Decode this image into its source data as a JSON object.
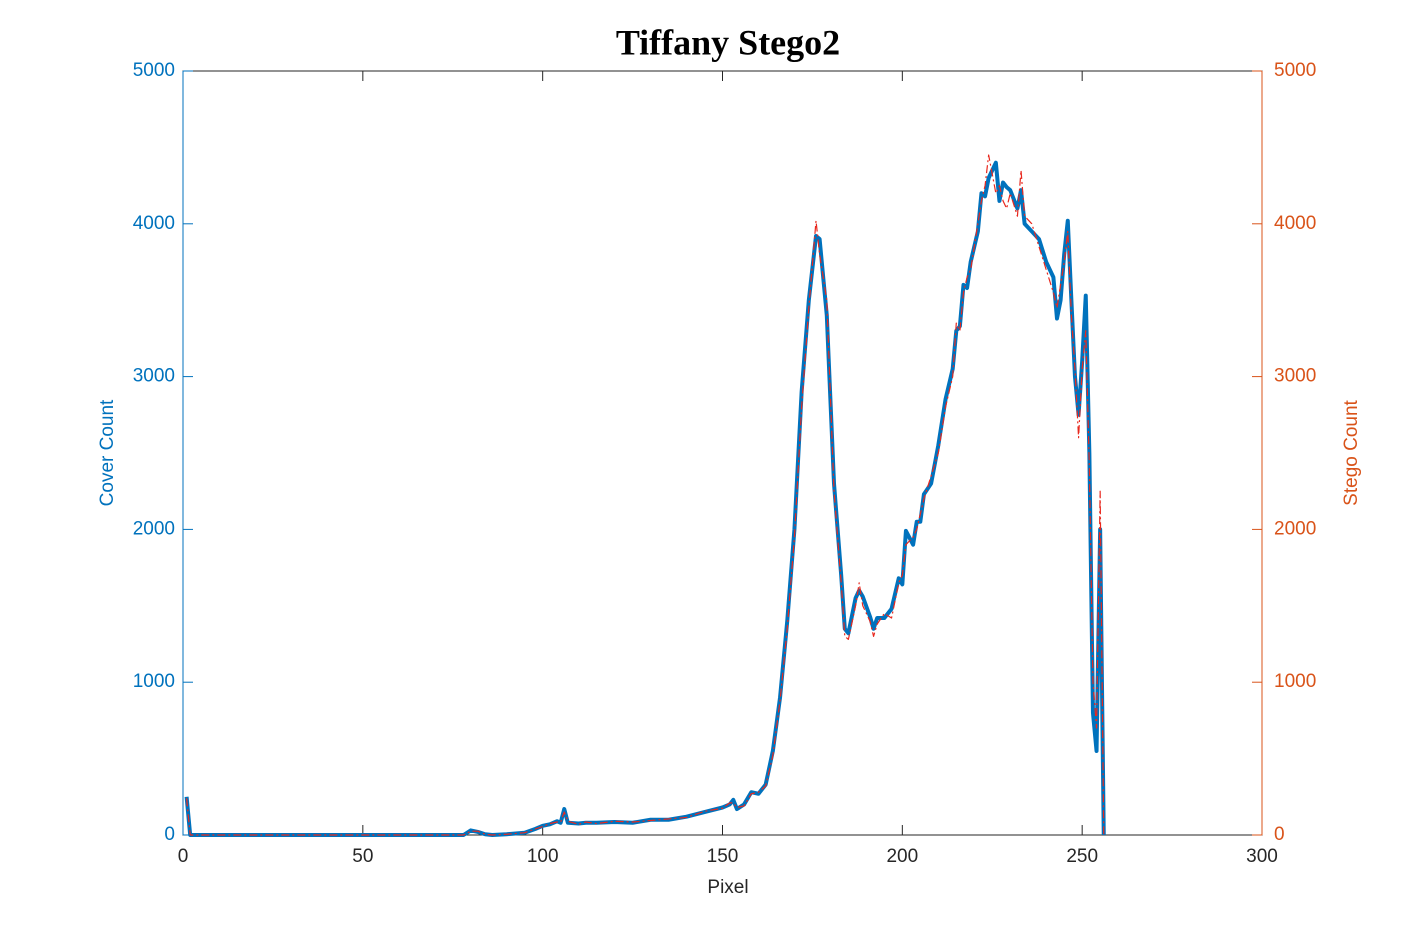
{
  "chart_data": {
    "type": "line",
    "title": "Tiffany Stego2",
    "xlabel": "Pixel",
    "ylabel": "Cover Count",
    "y2label": "Stego Count",
    "x": [
      1,
      2,
      10,
      20,
      30,
      40,
      50,
      60,
      70,
      78,
      80,
      82,
      84,
      86,
      90,
      95,
      98,
      100,
      102,
      104,
      105,
      106,
      107,
      110,
      112,
      115,
      120,
      125,
      130,
      135,
      140,
      145,
      150,
      152,
      153,
      154,
      156,
      158,
      160,
      162,
      164,
      166,
      168,
      170,
      172,
      174,
      176,
      177,
      179,
      181,
      183,
      184,
      185,
      187,
      188,
      189,
      191,
      192,
      193,
      195,
      197,
      199,
      200,
      201,
      203,
      204,
      205,
      206,
      208,
      210,
      212,
      214,
      215,
      216,
      217,
      218,
      219,
      221,
      222,
      223,
      224,
      226,
      227,
      228,
      229,
      230,
      232,
      233,
      234,
      236,
      238,
      240,
      242,
      243,
      244,
      245,
      246,
      247,
      248,
      249,
      250,
      251,
      252,
      253,
      254,
      255,
      256
    ],
    "series": [
      {
        "name": "Cover",
        "color": "#0072bd",
        "axis": "y",
        "values": [
          250,
          0,
          0,
          0,
          0,
          0,
          0,
          0,
          0,
          0,
          30,
          20,
          5,
          0,
          5,
          15,
          40,
          60,
          70,
          90,
          80,
          170,
          80,
          75,
          80,
          80,
          85,
          80,
          100,
          100,
          120,
          150,
          180,
          200,
          230,
          170,
          200,
          280,
          270,
          330,
          550,
          900,
          1400,
          2000,
          2900,
          3500,
          3920,
          3900,
          3400,
          2300,
          1700,
          1350,
          1320,
          1550,
          1600,
          1560,
          1430,
          1350,
          1420,
          1420,
          1480,
          1680,
          1640,
          1990,
          1900,
          2050,
          2050,
          2230,
          2300,
          2550,
          2850,
          3050,
          3300,
          3330,
          3600,
          3580,
          3750,
          3950,
          4200,
          4180,
          4300,
          4400,
          4150,
          4270,
          4240,
          4220,
          4100,
          4220,
          4000,
          3950,
          3900,
          3750,
          3650,
          3380,
          3500,
          3800,
          4020,
          3500,
          3000,
          2750,
          3100,
          3530,
          2500,
          800,
          550,
          2000,
          0
        ]
      },
      {
        "name": "Stego",
        "color": "#e8281e",
        "axis": "y2",
        "values": [
          240,
          0,
          0,
          0,
          0,
          0,
          0,
          0,
          0,
          0,
          25,
          25,
          5,
          0,
          5,
          15,
          40,
          55,
          75,
          85,
          85,
          150,
          90,
          70,
          85,
          75,
          90,
          85,
          95,
          105,
          115,
          155,
          175,
          210,
          210,
          180,
          190,
          270,
          280,
          320,
          520,
          880,
          1350,
          1950,
          2800,
          3450,
          4020,
          3800,
          3500,
          2250,
          1650,
          1300,
          1280,
          1500,
          1650,
          1500,
          1400,
          1300,
          1380,
          1450,
          1420,
          1650,
          1700,
          1900,
          1950,
          2000,
          2100,
          2200,
          2350,
          2500,
          2800,
          3000,
          3350,
          3300,
          3550,
          3650,
          3700,
          4000,
          4150,
          4250,
          4450,
          4200,
          4250,
          4150,
          4100,
          4200,
          4050,
          4350,
          4050,
          4000,
          3850,
          3700,
          3550,
          3450,
          3600,
          3750,
          3950,
          3400,
          3050,
          2600,
          3050,
          3300,
          2400,
          1000,
          700,
          2250,
          0
        ]
      }
    ],
    "xlim": [
      0,
      300
    ],
    "xticks": [
      0,
      50,
      100,
      150,
      200,
      250,
      300
    ],
    "ylim": [
      0,
      5000
    ],
    "yticks": [
      0,
      1000,
      2000,
      3000,
      4000,
      5000
    ],
    "y2lim": [
      0,
      5000
    ],
    "y2ticks": [
      0,
      1000,
      2000,
      3000,
      4000,
      5000
    ]
  }
}
